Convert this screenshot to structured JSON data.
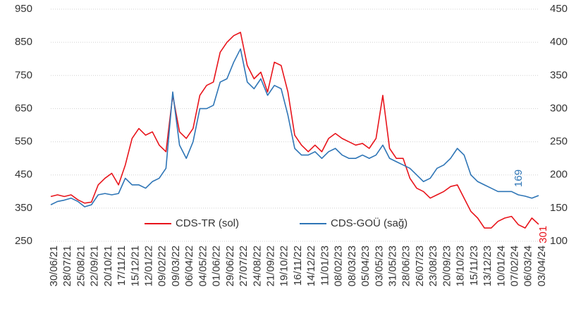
{
  "chart_data": {
    "type": "line",
    "categories": [
      "30/06/21",
      null,
      "28/07/21",
      null,
      "25/08/21",
      null,
      "22/09/21",
      null,
      "20/10/21",
      null,
      "17/11/21",
      null,
      "15/12/21",
      null,
      "12/01/22",
      null,
      "09/02/22",
      null,
      "09/03/22",
      null,
      "06/04/22",
      null,
      "04/05/22",
      null,
      "01/06/22",
      null,
      "29/06/22",
      null,
      "27/07/22",
      null,
      "24/08/22",
      null,
      "21/09/22",
      null,
      "19/10/22",
      null,
      "16/11/22",
      null,
      "14/12/22",
      null,
      "11/01/23",
      null,
      "08/02/23",
      null,
      "08/03/23",
      null,
      "05/04/23",
      null,
      "03/05/23",
      null,
      "31/05/23",
      null,
      "28/06/23",
      null,
      "26/07/23",
      null,
      "23/08/23",
      null,
      "20/09/23",
      null,
      "18/10/23",
      null,
      "15/11/23",
      null,
      "13/12/23",
      null,
      "10/01/24",
      null,
      "07/02/24",
      null,
      "06/03/24",
      null,
      "03/04/24"
    ],
    "series": [
      {
        "name": "CDS-TR (sol)",
        "color": "#e8141b",
        "axis": "y",
        "values": [
          385,
          390,
          385,
          390,
          375,
          365,
          368,
          420,
          440,
          455,
          420,
          480,
          560,
          590,
          570,
          580,
          540,
          520,
          690,
          580,
          560,
          590,
          690,
          720,
          730,
          820,
          850,
          870,
          880,
          780,
          740,
          760,
          700,
          790,
          780,
          700,
          570,
          540,
          520,
          540,
          520,
          560,
          575,
          560,
          550,
          540,
          545,
          530,
          560,
          690,
          530,
          500,
          500,
          440,
          410,
          400,
          380,
          390,
          400,
          415,
          420,
          380,
          340,
          320,
          290,
          290,
          310,
          320,
          325,
          300,
          290,
          320,
          301
        ]
      },
      {
        "name": "CDS-GOÜ (sağ)",
        "color": "#2e75b6",
        "axis": "y2",
        "values": [
          155,
          160,
          162,
          165,
          160,
          152,
          155,
          170,
          172,
          170,
          172,
          195,
          185,
          185,
          180,
          190,
          195,
          210,
          325,
          245,
          225,
          250,
          300,
          300,
          305,
          340,
          345,
          370,
          390,
          340,
          330,
          345,
          320,
          335,
          330,
          290,
          240,
          230,
          230,
          235,
          225,
          235,
          240,
          230,
          225,
          225,
          230,
          225,
          230,
          245,
          225,
          220,
          215,
          210,
          200,
          190,
          195,
          210,
          215,
          225,
          240,
          230,
          200,
          190,
          185,
          180,
          175,
          175,
          175,
          170,
          168,
          165,
          169
        ]
      }
    ],
    "ylim": [
      250,
      950
    ],
    "yticks": [
      250,
      350,
      450,
      550,
      650,
      750,
      850,
      950
    ],
    "y2lim": [
      100,
      450
    ],
    "y2ticks": [
      100,
      150,
      200,
      250,
      300,
      350,
      400,
      450
    ],
    "grid": true,
    "legend": "bottom"
  }
}
